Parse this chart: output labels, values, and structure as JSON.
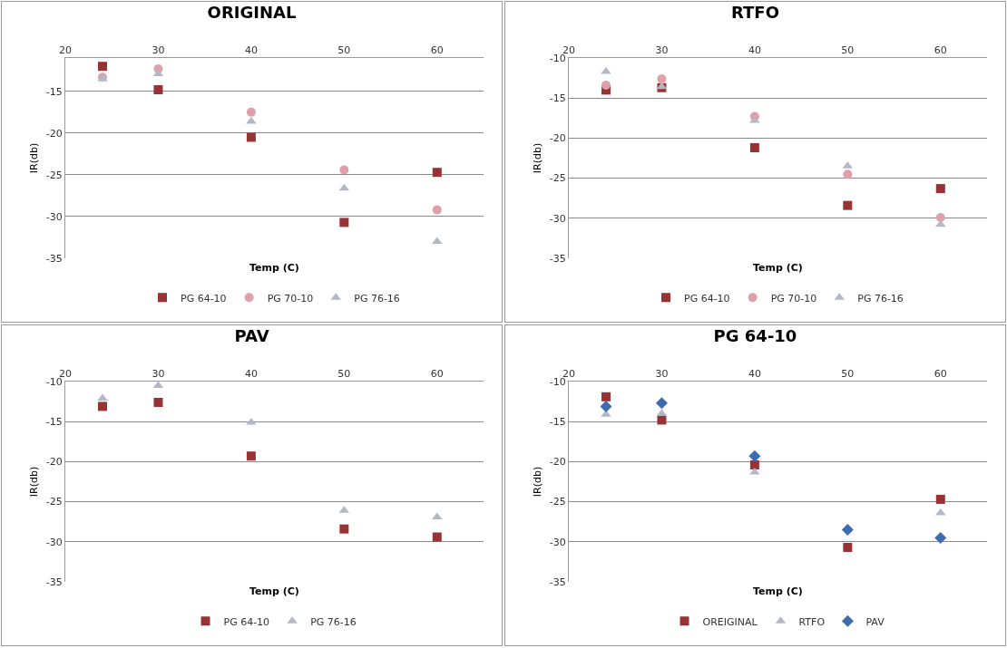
{
  "chart_data": [
    {
      "type": "scatter",
      "title": "ORIGINAL",
      "xlabel": "Temp (C)",
      "ylabel": "IR(db)",
      "x": [
        24,
        30,
        40,
        50,
        60
      ],
      "xlim": [
        20,
        65
      ],
      "xticks": [
        20,
        30,
        40,
        50,
        60
      ],
      "ylim": [
        -35,
        -11
      ],
      "yticks": [
        -35,
        -30,
        -25,
        -20,
        -15
      ],
      "grid": "y",
      "legend": "bottom",
      "series": [
        {
          "name": "PG 64-10",
          "color": "#993333",
          "marker": "square",
          "values": [
            -12.0,
            -14.8,
            -20.5,
            -30.7,
            -24.7
          ]
        },
        {
          "name": "PG 70-10",
          "color": "#e0a0aa",
          "marker": "circle",
          "values": [
            -13.3,
            -12.3,
            -17.5,
            -24.4,
            -29.2
          ]
        },
        {
          "name": "PG 76-16",
          "color": "#b4b8c6",
          "marker": "triangle",
          "values": [
            -13.5,
            -12.9,
            -18.6,
            -26.6,
            -33.0
          ]
        }
      ]
    },
    {
      "type": "scatter",
      "title": "RTFO",
      "xlabel": "Temp (C)",
      "ylabel": "IR(db)",
      "x": [
        24,
        30,
        40,
        50,
        60
      ],
      "xlim": [
        20,
        65
      ],
      "xticks": [
        20,
        30,
        40,
        50,
        60
      ],
      "ylim": [
        -35,
        -10
      ],
      "yticks": [
        -35,
        -30,
        -25,
        -20,
        -15,
        -10
      ],
      "grid": "y",
      "legend": "bottom",
      "series": [
        {
          "name": "PG 64-10",
          "color": "#993333",
          "marker": "square",
          "values": [
            -14.0,
            -13.7,
            -21.2,
            -28.4,
            -26.3
          ]
        },
        {
          "name": "PG 70-10",
          "color": "#e0a0aa",
          "marker": "circle",
          "values": [
            -13.4,
            -12.6,
            -17.3,
            -24.5,
            -29.9
          ]
        },
        {
          "name": "PG 76-16",
          "color": "#b4b8c6",
          "marker": "triangle",
          "values": [
            -11.7,
            -13.6,
            -17.8,
            -23.5,
            -30.8
          ]
        }
      ]
    },
    {
      "type": "scatter",
      "title": "PAV",
      "xlabel": "Temp (C)",
      "ylabel": "IR(db)",
      "x": [
        24,
        30,
        40,
        50,
        60
      ],
      "xlim": [
        20,
        65
      ],
      "xticks": [
        20,
        30,
        40,
        50,
        60
      ],
      "ylim": [
        -35,
        -10
      ],
      "yticks": [
        -35,
        -30,
        -25,
        -20,
        -15,
        -10
      ],
      "grid": "y",
      "legend": "bottom",
      "series": [
        {
          "name": "PG 64-10",
          "color": "#993333",
          "marker": "square",
          "values": [
            -13.1,
            -12.6,
            -19.3,
            -28.4,
            -29.4
          ]
        },
        {
          "name": "PG 76-16",
          "color": "#b4b8c6",
          "marker": "triangle",
          "values": [
            -12.1,
            -10.5,
            -15.1,
            -26.1,
            -26.9
          ]
        }
      ]
    },
    {
      "type": "scatter",
      "title": "PG 64-10",
      "xlabel": "Temp (C)",
      "ylabel": "IR(db)",
      "x": [
        24,
        30,
        40,
        50,
        60
      ],
      "xlim": [
        20,
        65
      ],
      "xticks": [
        20,
        30,
        40,
        50,
        60
      ],
      "ylim": [
        -35,
        -10
      ],
      "yticks": [
        -35,
        -30,
        -25,
        -20,
        -15,
        -10
      ],
      "grid": "y",
      "legend": "bottom",
      "series": [
        {
          "name": "OREIGINAL",
          "color": "#993333",
          "marker": "square",
          "values": [
            -11.9,
            -14.8,
            -20.4,
            -30.7,
            -24.7
          ]
        },
        {
          "name": "RTFO",
          "color": "#b4b8c6",
          "marker": "triangle",
          "values": [
            -14.1,
            -14.0,
            -21.3,
            null,
            -26.4
          ]
        },
        {
          "name": "PAV",
          "color": "#3d6cb3",
          "marker": "diamond",
          "values": [
            -13.1,
            -12.7,
            -19.3,
            -28.5,
            -29.5
          ]
        }
      ]
    }
  ]
}
